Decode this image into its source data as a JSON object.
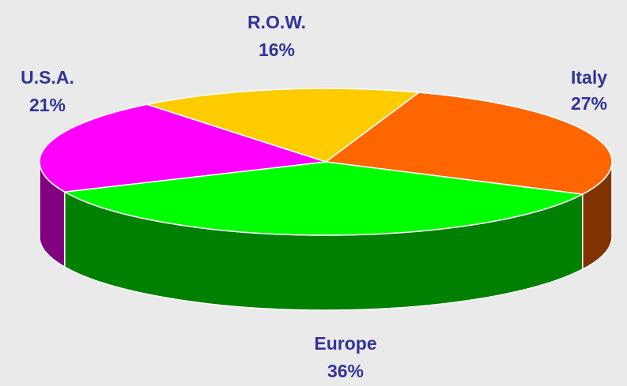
{
  "chart_data": {
    "type": "pie3d",
    "categories": [
      "Italy",
      "Europe",
      "U.S.A.",
      "R.O.W."
    ],
    "values": [
      27,
      36,
      21,
      16
    ],
    "value_labels": [
      "27%",
      "36%",
      "21%",
      "16%"
    ],
    "colors": [
      "#ff6600",
      "#00ff00",
      "#ff00ff",
      "#ffcc00"
    ]
  }
}
